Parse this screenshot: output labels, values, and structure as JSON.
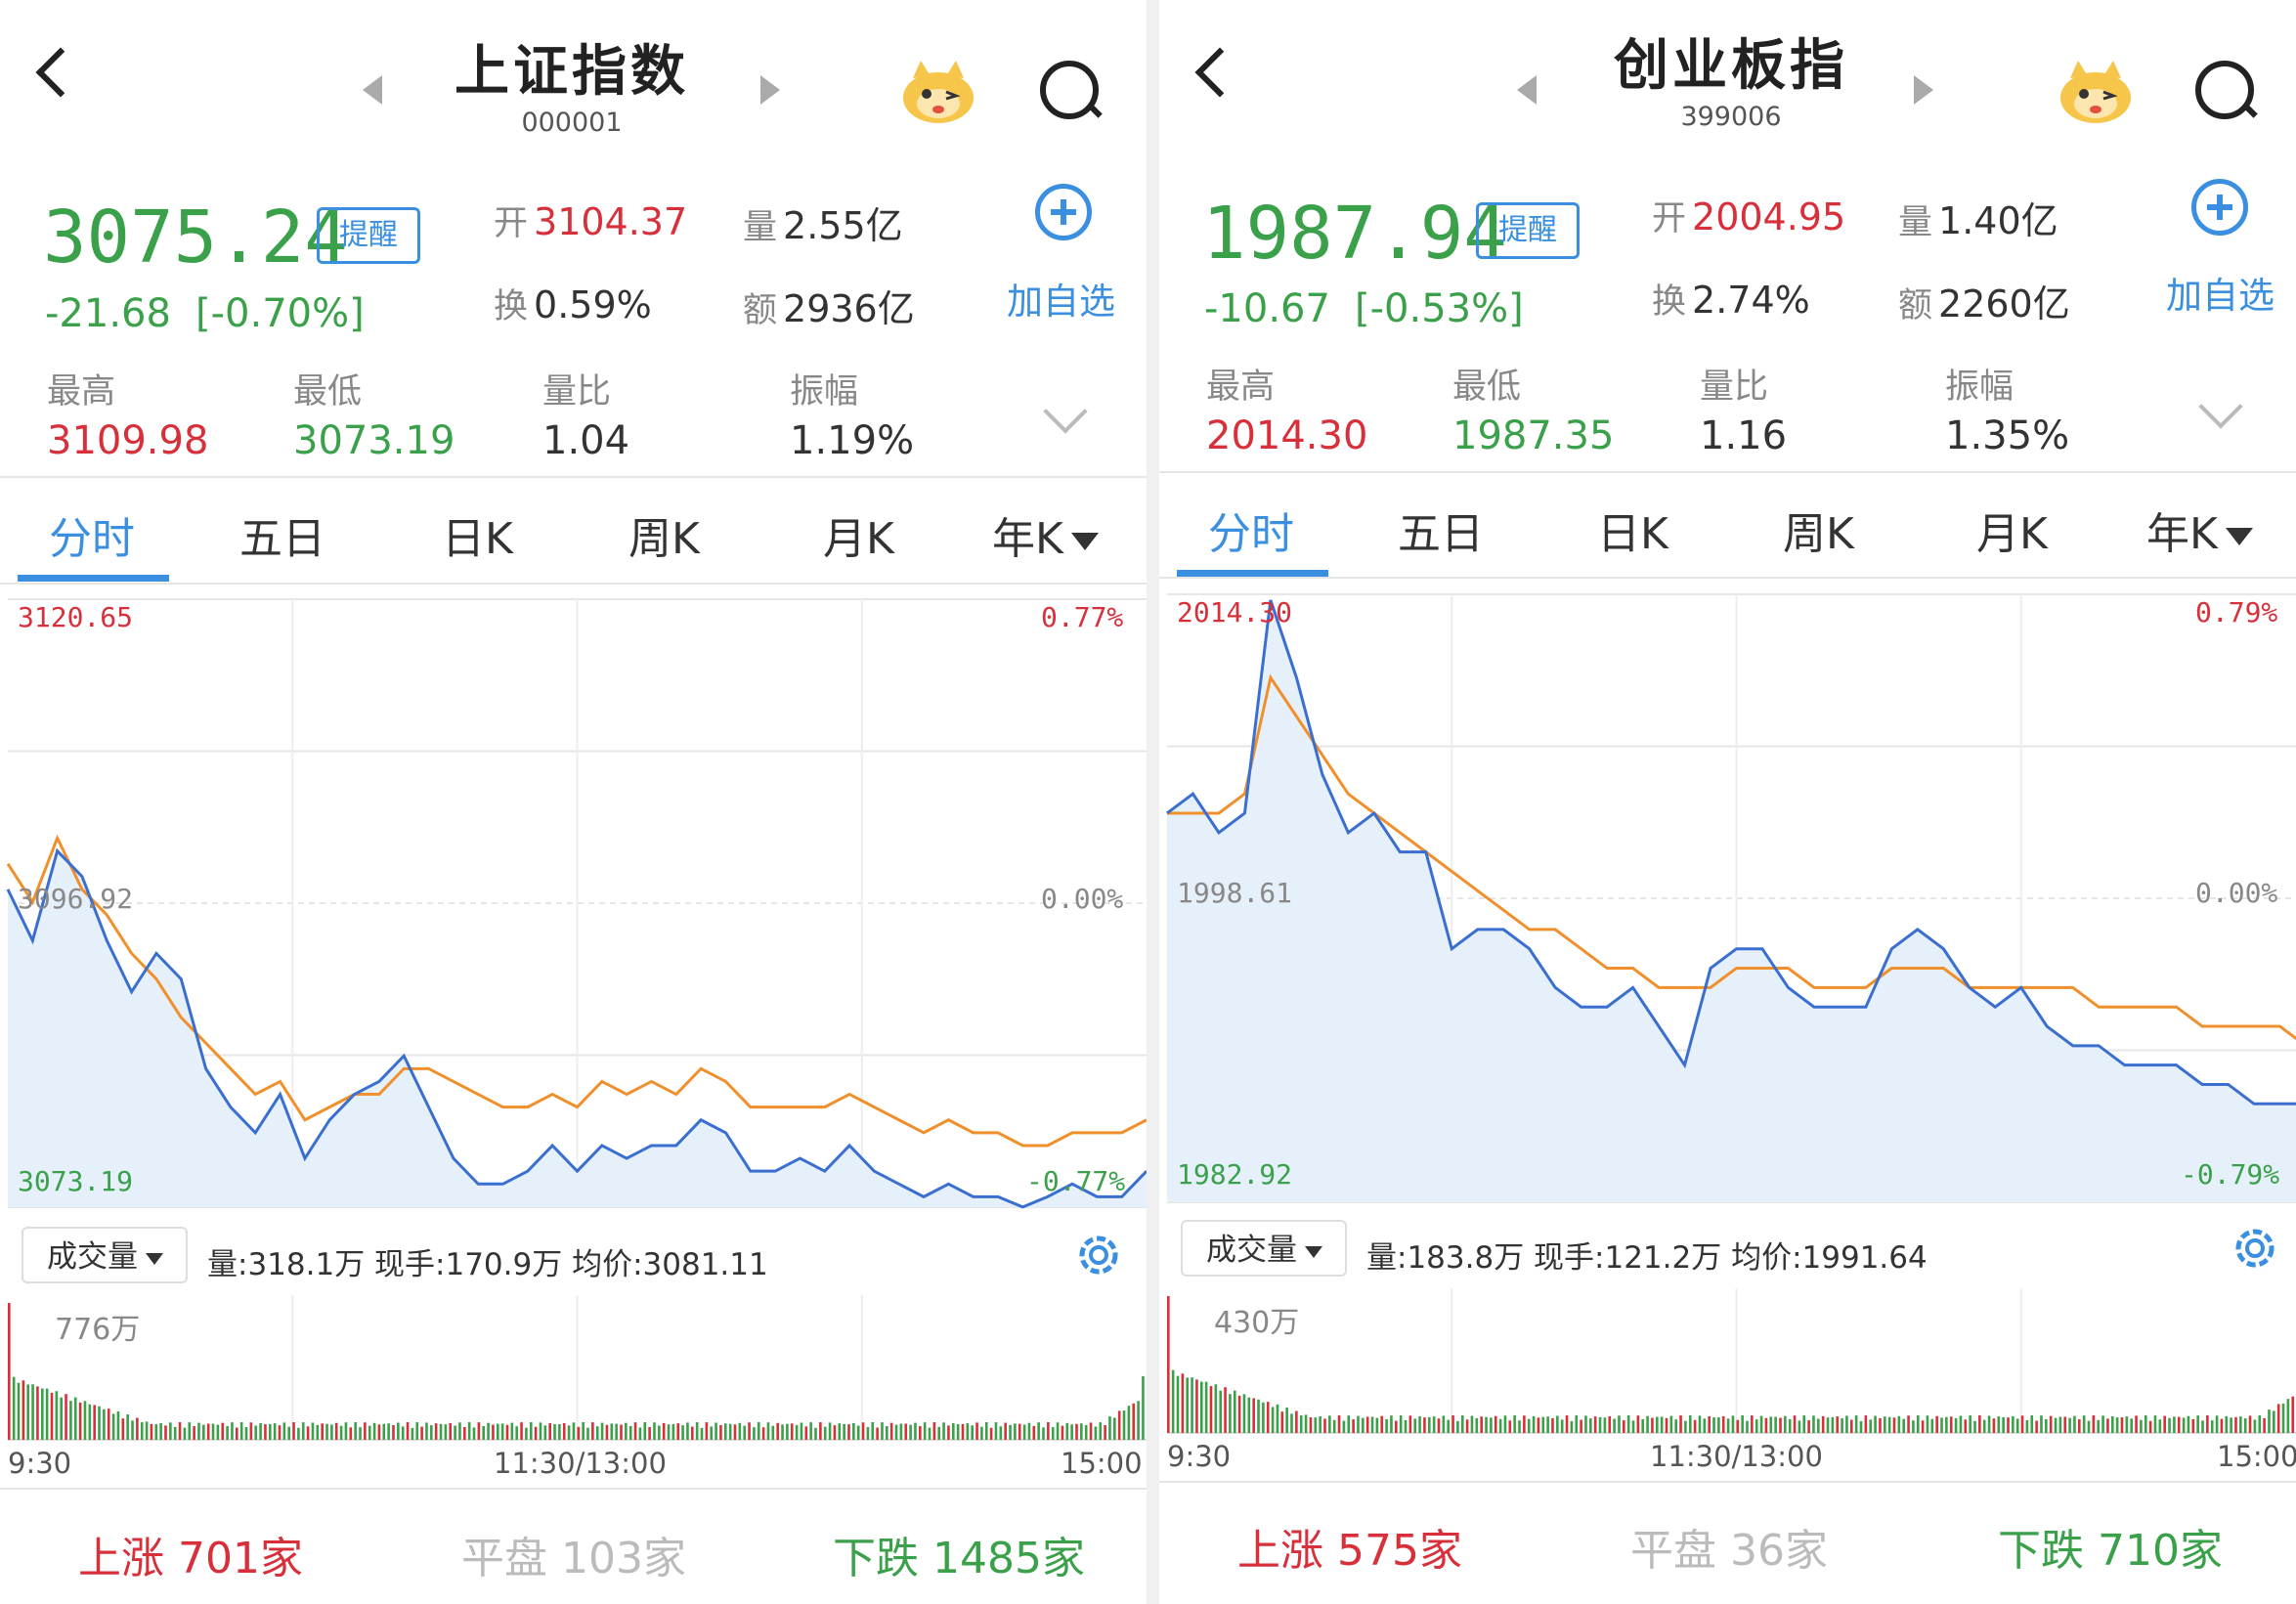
{
  "panels": [
    {
      "title": "上证指数",
      "code": "000001",
      "price": "3075.24",
      "remind": "提醒",
      "change": "-21.68",
      "change_pct": "[-0.70%]",
      "open_k": "开",
      "open": "3104.37",
      "vol_k": "量",
      "vol": "2.55亿",
      "turn_k": "换",
      "turn": "0.59%",
      "amt_k": "额",
      "amt": "2936亿",
      "add": "加自选",
      "high_k": "最高",
      "high": "3109.98",
      "low_k": "最低",
      "low": "3073.19",
      "ratio_k": "量比",
      "ratio": "1.04",
      "amp_k": "振幅",
      "amp": "1.19%",
      "tabs": [
        "分时",
        "五日",
        "日K",
        "周K",
        "月K",
        "年K"
      ],
      "axis": {
        "top": "3120.65",
        "mid": "3096.92",
        "bot": "3073.19",
        "top_pct": "0.77%",
        "mid_pct": "0.00%",
        "bot_pct": "-0.77%"
      },
      "vol_label": "成交量",
      "vol_info": "量:318.1万  现手:170.9万  均价:3081.11",
      "vol_max": "776万",
      "times": [
        "9:30",
        "11:30/13:00",
        "15:00"
      ],
      "up_k": "上涨",
      "up": "701家",
      "flat_k": "平盘",
      "flat": "103家",
      "down_k": "下跌",
      "down": "1485家",
      "chart_data": {
        "type": "line",
        "ylim": [
          3073.19,
          3120.65
        ],
        "base": 3096.92,
        "series": [
          {
            "values": [
              3098,
              3094,
              3101,
              3099,
              3094,
              3090,
              3093,
              3091,
              3084,
              3081,
              3079,
              3082,
              3077,
              3080,
              3082,
              3083,
              3085,
              3081,
              3077,
              3075,
              3075,
              3076,
              3078,
              3076,
              3078,
              3077,
              3078,
              3078,
              3080,
              3079,
              3076,
              3076,
              3077,
              3076,
              3078,
              3076,
              3075,
              3074,
              3075,
              3074,
              3074,
              3073.2,
              3074,
              3075,
              3074,
              3074,
              3076
            ]
          },
          {
            "values": [
              3100,
              3097,
              3102,
              3098,
              3096,
              3093,
              3091,
              3088,
              3086,
              3084,
              3082,
              3083,
              3080,
              3081,
              3082,
              3082,
              3084,
              3084,
              3083,
              3082,
              3081,
              3081,
              3082,
              3081,
              3083,
              3082,
              3083,
              3082,
              3084,
              3083,
              3081,
              3081,
              3081,
              3081,
              3082,
              3081,
              3080,
              3079,
              3080,
              3079,
              3079,
              3078,
              3078,
              3079,
              3079,
              3079,
              3080
            ]
          }
        ]
      }
    },
    {
      "title": "创业板指",
      "code": "399006",
      "price": "1987.94",
      "remind": "提醒",
      "change": "-10.67",
      "change_pct": "[-0.53%]",
      "open_k": "开",
      "open": "2004.95",
      "vol_k": "量",
      "vol": "1.40亿",
      "turn_k": "换",
      "turn": "2.74%",
      "amt_k": "额",
      "amt": "2260亿",
      "add": "加自选",
      "high_k": "最高",
      "high": "2014.30",
      "low_k": "最低",
      "low": "1987.35",
      "ratio_k": "量比",
      "ratio": "1.16",
      "amp_k": "振幅",
      "amp": "1.35%",
      "tabs": [
        "分时",
        "五日",
        "日K",
        "周K",
        "月K",
        "年K"
      ],
      "axis": {
        "top": "2014.30",
        "mid": "1998.61",
        "bot": "1982.92",
        "top_pct": "0.79%",
        "mid_pct": "0.00%",
        "bot_pct": "-0.79%"
      },
      "vol_label": "成交量",
      "vol_info": "量:183.8万  现手:121.2万  均价:1991.64",
      "vol_max": "430万",
      "times": [
        "9:30",
        "11:30/13:00",
        "15:00"
      ],
      "up_k": "上涨",
      "up": "575家",
      "flat_k": "平盘",
      "flat": "36家",
      "down_k": "下跌",
      "down": "710家",
      "chart_data": {
        "type": "line",
        "ylim": [
          1982.92,
          2014.3
        ],
        "base": 1998.61,
        "series": [
          {
            "values": [
              2003,
              2004,
              2002,
              2003,
              2014,
              2010,
              2005,
              2002,
              2003,
              2001,
              2001,
              1996,
              1997,
              1997,
              1996,
              1994,
              1993,
              1993,
              1994,
              1992,
              1990,
              1995,
              1996,
              1996,
              1994,
              1993,
              1993,
              1993,
              1996,
              1997,
              1996,
              1994,
              1993,
              1994,
              1992,
              1991,
              1991,
              1990,
              1990,
              1990,
              1989,
              1989,
              1988,
              1988,
              1988
            ]
          },
          {
            "values": [
              2003,
              2003,
              2003,
              2004,
              2010,
              2008,
              2006,
              2004,
              2003,
              2002,
              2001,
              2000,
              1999,
              1998,
              1997,
              1997,
              1996,
              1995,
              1995,
              1994,
              1994,
              1994,
              1995,
              1995,
              1995,
              1994,
              1994,
              1994,
              1995,
              1995,
              1995,
              1994,
              1994,
              1994,
              1994,
              1994,
              1993,
              1993,
              1993,
              1993,
              1992,
              1992,
              1992,
              1992,
              1991
            ]
          }
        ]
      }
    }
  ],
  "colors": {
    "red": "#d7303b",
    "green": "#3aa14a",
    "blue": "#3a6fd0",
    "orange": "#f0902c",
    "accent": "#3a8fe0"
  }
}
